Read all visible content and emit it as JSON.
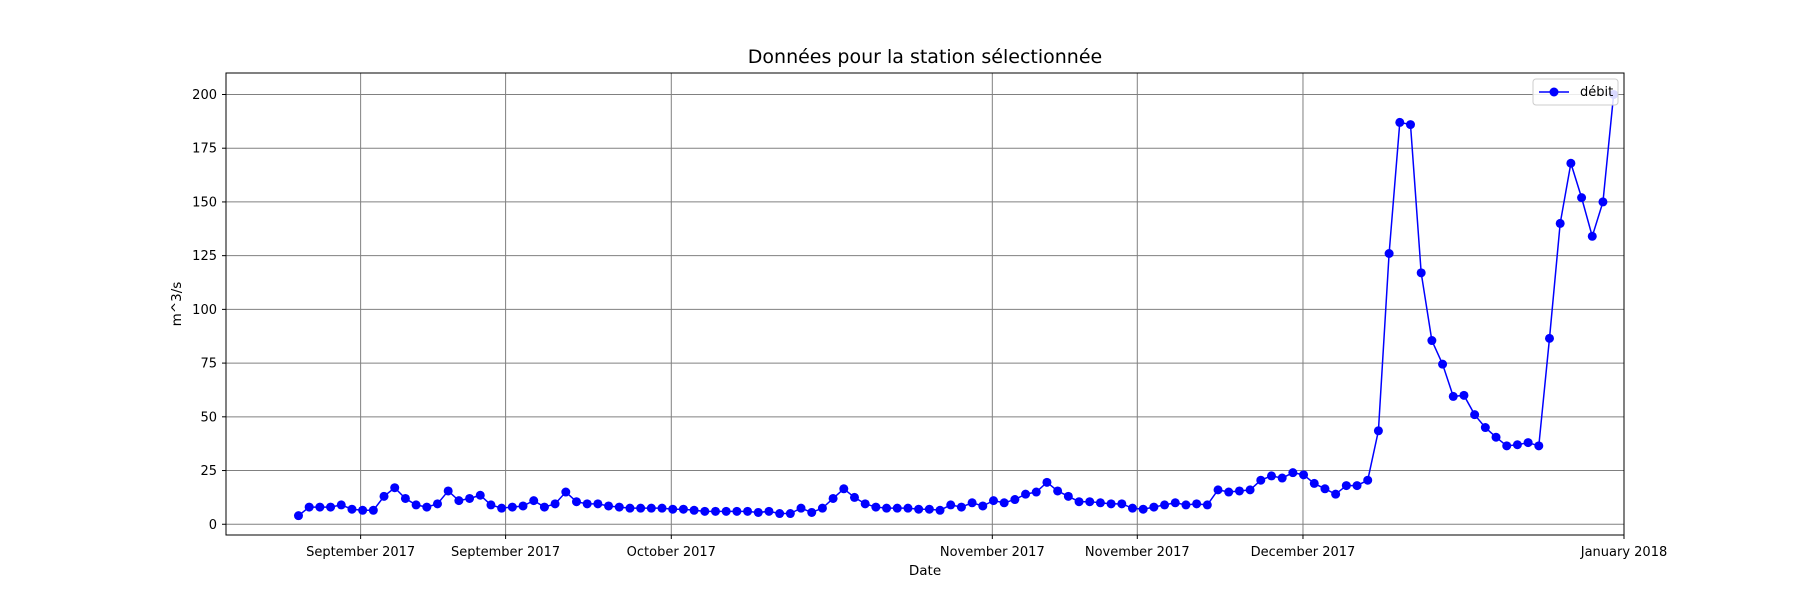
{
  "chart_data": {
    "type": "line",
    "title": "Données pour la station sélectionnée",
    "xlabel": "Date",
    "ylabel": "m^3/s",
    "x_start": "2017-08-26",
    "x_end": "2017-12-31",
    "xlim": [
      "2017-08-19",
      "2018-01-01"
    ],
    "ylim": [
      -5,
      210
    ],
    "y_ticks": [
      0,
      25,
      50,
      75,
      100,
      125,
      150,
      175,
      200
    ],
    "x_ticks": [
      {
        "date": "2017-09-01",
        "label": "September 2017"
      },
      {
        "date": "2017-09-15",
        "label": "September 2017"
      },
      {
        "date": "2017-10-01",
        "label": "October 2017"
      },
      {
        "date": "2017-11-01",
        "label": "November 2017"
      },
      {
        "date": "2017-11-15",
        "label": "November 2017"
      },
      {
        "date": "2017-12-01",
        "label": "December 2017"
      },
      {
        "date": "2018-01-01",
        "label": "January 2018"
      }
    ],
    "grid": true,
    "legend_position": "top-right",
    "series": [
      {
        "name": "débit",
        "color": "#0000ff",
        "marker": "circle",
        "values": [
          4,
          8,
          8,
          8,
          9,
          7,
          6.5,
          6.5,
          13,
          17,
          12,
          9,
          8,
          9.5,
          15.5,
          11,
          12,
          13.5,
          9,
          7.5,
          8,
          8.5,
          11,
          8,
          9.5,
          15,
          10.5,
          9.5,
          9.5,
          8.5,
          8,
          7.5,
          7.5,
          7.5,
          7.5,
          7,
          7,
          6.5,
          6,
          6,
          6,
          6,
          6,
          5.5,
          6,
          5,
          5,
          7.5,
          5.5,
          7.5,
          12,
          16.5,
          12.5,
          9.5,
          8,
          7.5,
          7.5,
          7.5,
          7,
          7,
          6.5,
          9,
          8,
          10,
          8.5,
          11,
          10,
          11.5,
          14,
          15,
          19.5,
          15.5,
          13,
          10.5,
          10.5,
          10,
          9.5,
          9.5,
          7.5,
          7,
          8,
          9,
          10,
          9,
          9.5,
          9,
          16,
          15,
          15.5,
          16,
          20.5,
          22.5,
          21.5,
          24,
          23,
          19,
          16.5,
          14,
          18,
          18,
          20.5,
          43.5,
          126,
          187,
          186,
          117,
          85.5,
          74.5,
          59.5,
          60,
          51,
          45,
          40.5,
          36.5,
          37,
          38,
          36.5,
          86.5,
          140,
          168,
          152,
          134,
          150,
          200
        ]
      }
    ]
  }
}
